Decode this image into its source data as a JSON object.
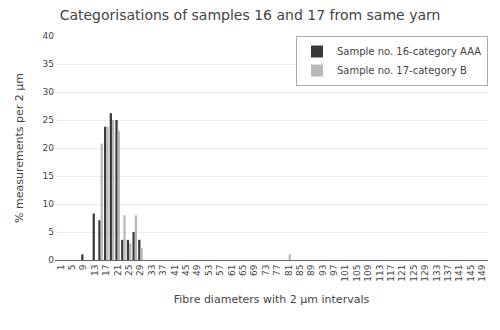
{
  "chart_data": {
    "type": "bar",
    "title": "Categorisations of samples 16 and 17 from same yarn",
    "xlabel": "Fibre diameters with 2 μm intervals",
    "ylabel": "% measurements per 2 μm",
    "series": [
      {
        "name": "Sample no. 16-category AAA",
        "color": "#3a3a3a",
        "x": [
          5,
          7,
          9,
          11,
          13,
          15,
          17,
          19,
          21,
          23,
          25,
          27,
          29
        ],
        "values": [
          0,
          0,
          1.0,
          0,
          8.3,
          7.1,
          23.8,
          26.2,
          25.0,
          3.6,
          3.6,
          5.0,
          3.6
        ]
      },
      {
        "name": "Sample no. 17-category B",
        "color": "#b8b8b8",
        "x": [
          13,
          15,
          17,
          19,
          21,
          23,
          25,
          27,
          29,
          31,
          81
        ],
        "values": [
          0,
          20.8,
          23.8,
          25.0,
          23.0,
          8.0,
          3.0,
          8.0,
          2.2,
          0,
          1.0
        ]
      }
    ],
    "xlim": [
      -1,
      151
    ],
    "xticks": [
      1,
      5,
      9,
      13,
      17,
      21,
      25,
      29,
      33,
      37,
      41,
      45,
      49,
      53,
      57,
      61,
      65,
      69,
      73,
      77,
      81,
      85,
      89,
      93,
      97,
      101,
      105,
      109,
      113,
      117,
      121,
      125,
      129,
      133,
      137,
      141,
      145,
      149
    ],
    "ylim": [
      0,
      40
    ],
    "yticks": [
      0,
      5,
      10,
      15,
      20,
      25,
      30,
      35,
      40
    ],
    "grid": true,
    "legend": "upper right"
  }
}
